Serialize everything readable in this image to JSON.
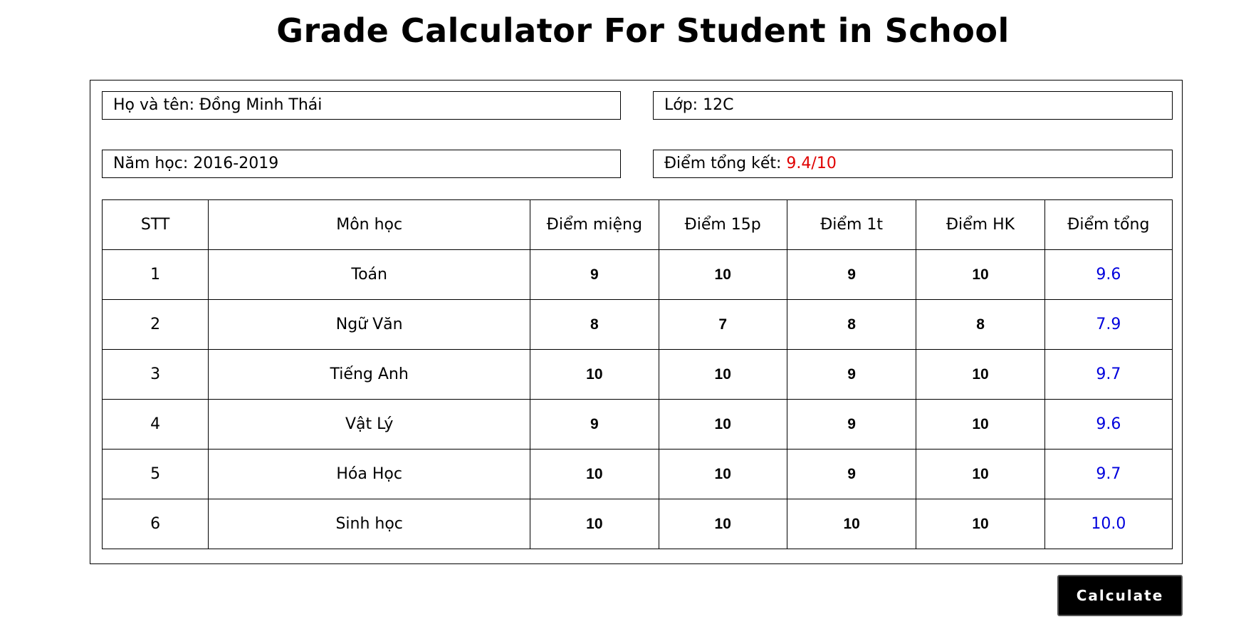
{
  "page": {
    "title": "Grade Calculator For Student in School"
  },
  "info": {
    "name_label": "Họ và tên: ",
    "name_value": "Đồng Minh Thái",
    "class_label": "Lớp: ",
    "class_value": "12C",
    "year_label": "Năm học: ",
    "year_value": "2016-2019",
    "total_label": "Điểm tổng kết: ",
    "total_value": "9.4/10"
  },
  "table": {
    "headers": [
      "STT",
      "Môn học",
      "Điểm miệng",
      "Điểm 15p",
      "Điểm 1t",
      "Điểm HK",
      "Điểm tổng"
    ],
    "rows": [
      {
        "stt": "1",
        "subject": "Toán",
        "mieng": "9",
        "p15": "10",
        "t1": "9",
        "hk": "10",
        "total": "9.6"
      },
      {
        "stt": "2",
        "subject": "Ngữ Văn",
        "mieng": "8",
        "p15": "7",
        "t1": "8",
        "hk": "8",
        "total": "7.9"
      },
      {
        "stt": "3",
        "subject": "Tiếng Anh",
        "mieng": "10",
        "p15": "10",
        "t1": "9",
        "hk": "10",
        "total": "9.7"
      },
      {
        "stt": "4",
        "subject": "Vật Lý",
        "mieng": "9",
        "p15": "10",
        "t1": "9",
        "hk": "10",
        "total": "9.6"
      },
      {
        "stt": "5",
        "subject": "Hóa Học",
        "mieng": "10",
        "p15": "10",
        "t1": "9",
        "hk": "10",
        "total": "9.7"
      },
      {
        "stt": "6",
        "subject": "Sinh học",
        "mieng": "10",
        "p15": "10",
        "t1": "10",
        "hk": "10",
        "total": "10.0"
      }
    ]
  },
  "actions": {
    "calculate_label": "Calculate"
  },
  "colors": {
    "total_summary": "#e00000",
    "subject_total": "#0000dd",
    "button_bg": "#000000"
  }
}
